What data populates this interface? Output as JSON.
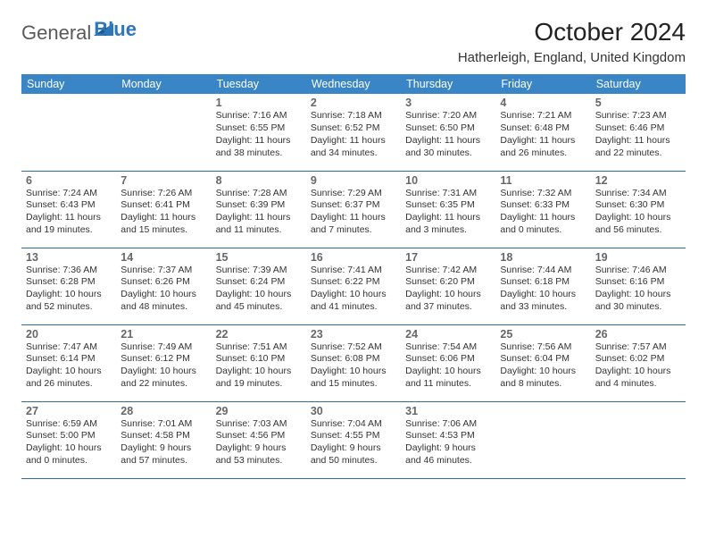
{
  "logo": {
    "part1": "General",
    "part2": "Blue"
  },
  "title": "October 2024",
  "location": "Hatherleigh, England, United Kingdom",
  "colors": {
    "header_bg": "#3a85c6",
    "header_text": "#ffffff",
    "rule": "#2e6da4",
    "logo_gray": "#5a5a5a",
    "logo_blue": "#2e77b8"
  },
  "typography": {
    "title_fontsize": 28,
    "location_fontsize": 15,
    "dayhead_fontsize": 12.5,
    "daynum_fontsize": 12.5,
    "body_fontsize": 10.5
  },
  "day_headers": [
    "Sunday",
    "Monday",
    "Tuesday",
    "Wednesday",
    "Thursday",
    "Friday",
    "Saturday"
  ],
  "weeks": [
    [
      null,
      null,
      {
        "n": "1",
        "sunrise": "Sunrise: 7:16 AM",
        "sunset": "Sunset: 6:55 PM",
        "day": "Daylight: 11 hours and 38 minutes."
      },
      {
        "n": "2",
        "sunrise": "Sunrise: 7:18 AM",
        "sunset": "Sunset: 6:52 PM",
        "day": "Daylight: 11 hours and 34 minutes."
      },
      {
        "n": "3",
        "sunrise": "Sunrise: 7:20 AM",
        "sunset": "Sunset: 6:50 PM",
        "day": "Daylight: 11 hours and 30 minutes."
      },
      {
        "n": "4",
        "sunrise": "Sunrise: 7:21 AM",
        "sunset": "Sunset: 6:48 PM",
        "day": "Daylight: 11 hours and 26 minutes."
      },
      {
        "n": "5",
        "sunrise": "Sunrise: 7:23 AM",
        "sunset": "Sunset: 6:46 PM",
        "day": "Daylight: 11 hours and 22 minutes."
      }
    ],
    [
      {
        "n": "6",
        "sunrise": "Sunrise: 7:24 AM",
        "sunset": "Sunset: 6:43 PM",
        "day": "Daylight: 11 hours and 19 minutes."
      },
      {
        "n": "7",
        "sunrise": "Sunrise: 7:26 AM",
        "sunset": "Sunset: 6:41 PM",
        "day": "Daylight: 11 hours and 15 minutes."
      },
      {
        "n": "8",
        "sunrise": "Sunrise: 7:28 AM",
        "sunset": "Sunset: 6:39 PM",
        "day": "Daylight: 11 hours and 11 minutes."
      },
      {
        "n": "9",
        "sunrise": "Sunrise: 7:29 AM",
        "sunset": "Sunset: 6:37 PM",
        "day": "Daylight: 11 hours and 7 minutes."
      },
      {
        "n": "10",
        "sunrise": "Sunrise: 7:31 AM",
        "sunset": "Sunset: 6:35 PM",
        "day": "Daylight: 11 hours and 3 minutes."
      },
      {
        "n": "11",
        "sunrise": "Sunrise: 7:32 AM",
        "sunset": "Sunset: 6:33 PM",
        "day": "Daylight: 11 hours and 0 minutes."
      },
      {
        "n": "12",
        "sunrise": "Sunrise: 7:34 AM",
        "sunset": "Sunset: 6:30 PM",
        "day": "Daylight: 10 hours and 56 minutes."
      }
    ],
    [
      {
        "n": "13",
        "sunrise": "Sunrise: 7:36 AM",
        "sunset": "Sunset: 6:28 PM",
        "day": "Daylight: 10 hours and 52 minutes."
      },
      {
        "n": "14",
        "sunrise": "Sunrise: 7:37 AM",
        "sunset": "Sunset: 6:26 PM",
        "day": "Daylight: 10 hours and 48 minutes."
      },
      {
        "n": "15",
        "sunrise": "Sunrise: 7:39 AM",
        "sunset": "Sunset: 6:24 PM",
        "day": "Daylight: 10 hours and 45 minutes."
      },
      {
        "n": "16",
        "sunrise": "Sunrise: 7:41 AM",
        "sunset": "Sunset: 6:22 PM",
        "day": "Daylight: 10 hours and 41 minutes."
      },
      {
        "n": "17",
        "sunrise": "Sunrise: 7:42 AM",
        "sunset": "Sunset: 6:20 PM",
        "day": "Daylight: 10 hours and 37 minutes."
      },
      {
        "n": "18",
        "sunrise": "Sunrise: 7:44 AM",
        "sunset": "Sunset: 6:18 PM",
        "day": "Daylight: 10 hours and 33 minutes."
      },
      {
        "n": "19",
        "sunrise": "Sunrise: 7:46 AM",
        "sunset": "Sunset: 6:16 PM",
        "day": "Daylight: 10 hours and 30 minutes."
      }
    ],
    [
      {
        "n": "20",
        "sunrise": "Sunrise: 7:47 AM",
        "sunset": "Sunset: 6:14 PM",
        "day": "Daylight: 10 hours and 26 minutes."
      },
      {
        "n": "21",
        "sunrise": "Sunrise: 7:49 AM",
        "sunset": "Sunset: 6:12 PM",
        "day": "Daylight: 10 hours and 22 minutes."
      },
      {
        "n": "22",
        "sunrise": "Sunrise: 7:51 AM",
        "sunset": "Sunset: 6:10 PM",
        "day": "Daylight: 10 hours and 19 minutes."
      },
      {
        "n": "23",
        "sunrise": "Sunrise: 7:52 AM",
        "sunset": "Sunset: 6:08 PM",
        "day": "Daylight: 10 hours and 15 minutes."
      },
      {
        "n": "24",
        "sunrise": "Sunrise: 7:54 AM",
        "sunset": "Sunset: 6:06 PM",
        "day": "Daylight: 10 hours and 11 minutes."
      },
      {
        "n": "25",
        "sunrise": "Sunrise: 7:56 AM",
        "sunset": "Sunset: 6:04 PM",
        "day": "Daylight: 10 hours and 8 minutes."
      },
      {
        "n": "26",
        "sunrise": "Sunrise: 7:57 AM",
        "sunset": "Sunset: 6:02 PM",
        "day": "Daylight: 10 hours and 4 minutes."
      }
    ],
    [
      {
        "n": "27",
        "sunrise": "Sunrise: 6:59 AM",
        "sunset": "Sunset: 5:00 PM",
        "day": "Daylight: 10 hours and 0 minutes."
      },
      {
        "n": "28",
        "sunrise": "Sunrise: 7:01 AM",
        "sunset": "Sunset: 4:58 PM",
        "day": "Daylight: 9 hours and 57 minutes."
      },
      {
        "n": "29",
        "sunrise": "Sunrise: 7:03 AM",
        "sunset": "Sunset: 4:56 PM",
        "day": "Daylight: 9 hours and 53 minutes."
      },
      {
        "n": "30",
        "sunrise": "Sunrise: 7:04 AM",
        "sunset": "Sunset: 4:55 PM",
        "day": "Daylight: 9 hours and 50 minutes."
      },
      {
        "n": "31",
        "sunrise": "Sunrise: 7:06 AM",
        "sunset": "Sunset: 4:53 PM",
        "day": "Daylight: 9 hours and 46 minutes."
      },
      null,
      null
    ]
  ]
}
